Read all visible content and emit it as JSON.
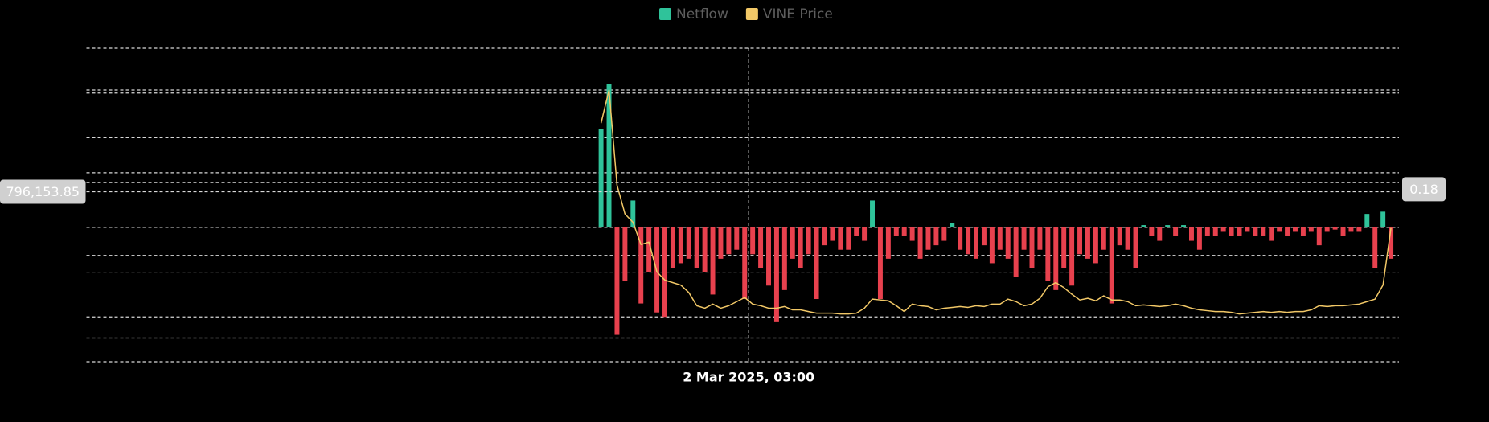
{
  "chart_data": {
    "type": "combo",
    "legend_position": "top",
    "grid": true,
    "xlim": [
      -129,
      200
    ],
    "ylim": [
      -3000000,
      4000000
    ],
    "yticks": [
      -3000000,
      -2000000,
      -1000000,
      0,
      1000000,
      2000000,
      3000000,
      4000000
    ],
    "y2lim": [
      -0.0287,
      0.3506
    ],
    "y2ticks": [
      0,
      0.1,
      0.2,
      0.3
    ],
    "x": [
      0,
      2,
      4,
      6,
      8,
      10,
      12,
      14,
      16,
      18,
      20,
      22,
      24,
      26,
      28,
      30,
      32,
      34,
      36,
      38,
      40,
      42,
      44,
      46,
      48,
      50,
      52,
      54,
      56,
      58,
      60,
      62,
      64,
      66,
      68,
      70,
      72,
      74,
      76,
      78,
      80,
      82,
      84,
      86,
      88,
      90,
      92,
      94,
      96,
      98,
      100,
      102,
      104,
      106,
      108,
      110,
      112,
      114,
      116,
      118,
      120,
      122,
      124,
      126,
      128,
      130,
      132,
      134,
      136,
      138,
      140,
      142,
      144,
      146,
      148,
      150,
      152,
      154,
      156,
      158,
      160,
      162,
      164,
      166,
      168,
      170,
      172,
      174,
      176,
      178,
      180,
      182,
      184,
      186,
      188,
      190,
      192,
      194,
      196,
      198
    ],
    "series": [
      {
        "name": "Netflow",
        "type": "bar",
        "color": "#2fc39a",
        "negative_color": "#e8414e",
        "values": [
          2200000,
          3200000,
          -2400000,
          -1200000,
          600000,
          -1700000,
          -1000000,
          -1900000,
          -2000000,
          -900000,
          -800000,
          -700000,
          -900000,
          -1000000,
          -1500000,
          -700000,
          -600000,
          -500000,
          -1600000,
          -600000,
          -900000,
          -1300000,
          -2100000,
          -1400000,
          -700000,
          -900000,
          -600000,
          -1600000,
          -400000,
          -300000,
          -500000,
          -500000,
          -200000,
          -300000,
          600000,
          -1600000,
          -700000,
          -200000,
          -200000,
          -300000,
          -700000,
          -500000,
          -400000,
          -300000,
          100000,
          -500000,
          -600000,
          -700000,
          -400000,
          -800000,
          -500000,
          -700000,
          -1100000,
          -500000,
          -900000,
          -500000,
          -1200000,
          -1400000,
          -900000,
          -1300000,
          -600000,
          -700000,
          -800000,
          -500000,
          -1700000,
          -400000,
          -500000,
          -900000,
          50000,
          -200000,
          -300000,
          50000,
          -200000,
          50000,
          -300000,
          -500000,
          -200000,
          -200000,
          -100000,
          -200000,
          -200000,
          -100000,
          -200000,
          -200000,
          -300000,
          -100000,
          -200000,
          -100000,
          -200000,
          -100000,
          -400000,
          -100000,
          -50000,
          -200000,
          -100000,
          -100000,
          300000,
          -900000,
          350000,
          -700000
        ]
      },
      {
        "name": "VINE Price",
        "type": "line",
        "axis": "y2",
        "color": "#f2c867",
        "values": [
          0.26,
          0.3,
          0.185,
          0.15,
          0.14,
          0.113,
          0.116,
          0.08,
          0.07,
          0.067,
          0.064,
          0.055,
          0.039,
          0.036,
          0.041,
          0.036,
          0.039,
          0.044,
          0.049,
          0.041,
          0.039,
          0.036,
          0.036,
          0.038,
          0.034,
          0.034,
          0.032,
          0.03,
          0.03,
          0.03,
          0.029,
          0.029,
          0.03,
          0.036,
          0.047,
          0.046,
          0.045,
          0.039,
          0.032,
          0.041,
          0.039,
          0.038,
          0.034,
          0.036,
          0.037,
          0.038,
          0.037,
          0.039,
          0.038,
          0.041,
          0.041,
          0.047,
          0.044,
          0.039,
          0.041,
          0.048,
          0.062,
          0.067,
          0.061,
          0.053,
          0.046,
          0.048,
          0.045,
          0.051,
          0.046,
          0.046,
          0.044,
          0.039,
          0.04,
          0.039,
          0.038,
          0.039,
          0.041,
          0.039,
          0.036,
          0.034,
          0.033,
          0.032,
          0.032,
          0.031,
          0.029,
          0.03,
          0.031,
          0.032,
          0.031,
          0.032,
          0.031,
          0.032,
          0.032,
          0.034,
          0.039,
          0.038,
          0.039,
          0.039,
          0.04,
          0.041,
          0.044,
          0.047,
          0.064,
          0.133
        ]
      }
    ],
    "crosshair": {
      "x": 37,
      "x_label": "2 Mar 2025, 03:00",
      "y": {
        "value": 796153.85,
        "label": "796,153.85"
      },
      "y2": {
        "value": 0.18,
        "label": "0.18"
      }
    }
  }
}
